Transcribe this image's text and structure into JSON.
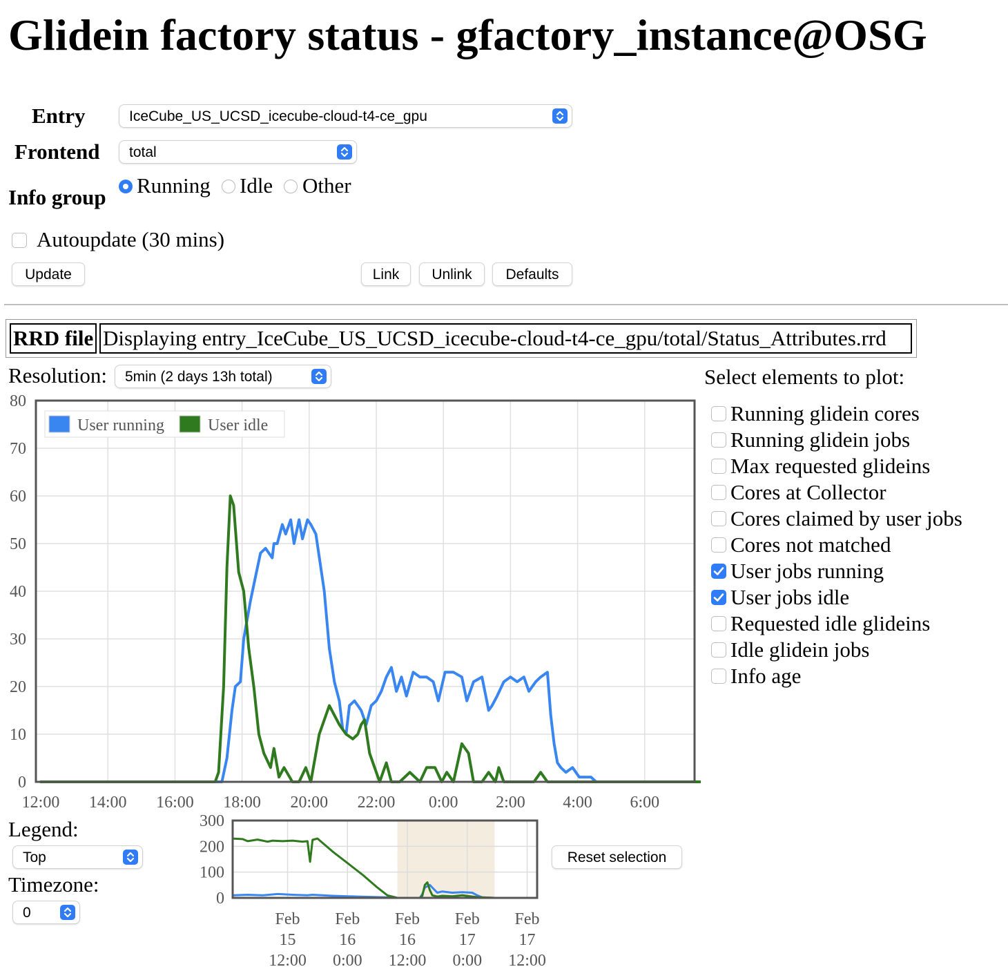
{
  "page": {
    "title": "Glidein factory status - gfactory_instance@OSG"
  },
  "controls": {
    "entry_label": "Entry",
    "entry_value": "IceCube_US_UCSD_icecube-cloud-t4-ce_gpu",
    "frontend_label": "Frontend",
    "frontend_value": "total",
    "info_group_label": "Info group",
    "info_group_options": [
      "Running",
      "Idle",
      "Other"
    ],
    "info_group_selected": "Running",
    "autoupdate_label": "Autoupdate (30 mins)",
    "autoupdate_checked": false,
    "buttons": {
      "update": "Update",
      "link": "Link",
      "unlink": "Unlink",
      "defaults": "Defaults"
    }
  },
  "rrd": {
    "label": "RRD file",
    "text": "Displaying entry_IceCube_US_UCSD_icecube-cloud-t4-ce_gpu/total/Status_Attributes.rrd"
  },
  "resolution": {
    "label": "Resolution:",
    "value": "5min (2 days 13h total)"
  },
  "plot_elements": {
    "title": "Select elements to plot:",
    "items": [
      {
        "label": "Running glidein cores",
        "checked": false
      },
      {
        "label": "Running glidein jobs",
        "checked": false
      },
      {
        "label": "Max requested glideins",
        "checked": false
      },
      {
        "label": "Cores at Collector",
        "checked": false
      },
      {
        "label": "Cores claimed by user jobs",
        "checked": false
      },
      {
        "label": "Cores not matched",
        "checked": false
      },
      {
        "label": "User jobs running",
        "checked": true
      },
      {
        "label": "User jobs idle",
        "checked": true
      },
      {
        "label": "Requested idle glideins",
        "checked": false
      },
      {
        "label": "Idle glidein jobs",
        "checked": false
      },
      {
        "label": "Info age",
        "checked": false
      }
    ]
  },
  "options": {
    "legend_label": "Legend:",
    "legend_value": "Top",
    "timezone_label": "Timezone:",
    "timezone_value": "0",
    "reset_button": "Reset selection"
  },
  "colors": {
    "running": "#3a86f0",
    "idle": "#2f7a1f",
    "accent": "#2f7cf6",
    "selection": "#f5ece0"
  },
  "chart_data": [
    {
      "type": "line",
      "title": "",
      "xlabel": "",
      "ylabel": "",
      "x_ticks": [
        "12:00",
        "14:00",
        "16:00",
        "18:00",
        "20:00",
        "22:00",
        "0:00",
        "2:00",
        "4:00",
        "6:00"
      ],
      "xlim": [
        0,
        19.7
      ],
      "ylim": [
        0,
        80
      ],
      "y_ticks": [
        0,
        10,
        20,
        30,
        40,
        50,
        60,
        70,
        80
      ],
      "legend": {
        "position": "top-left",
        "entries": [
          "User running",
          "User idle"
        ]
      },
      "series": [
        {
          "name": "User running",
          "color": "#3a86f0",
          "x": [
            0,
            5.2,
            5.4,
            5.55,
            5.7,
            5.8,
            5.95,
            6.05,
            6.25,
            6.4,
            6.55,
            6.7,
            6.9,
            6.95,
            7.05,
            7.2,
            7.3,
            7.45,
            7.55,
            7.7,
            7.8,
            7.95,
            8.05,
            8.2,
            8.45,
            8.6,
            8.75,
            8.9,
            9.0,
            9.1,
            9.2,
            9.35,
            9.45,
            9.55,
            9.7,
            9.85,
            10.0,
            10.15,
            10.3,
            10.45,
            10.6,
            10.75,
            10.9,
            11.1,
            11.3,
            11.5,
            11.7,
            11.85,
            12.05,
            12.3,
            12.55,
            12.7,
            12.9,
            13.15,
            13.35,
            13.45,
            13.6,
            13.8,
            14.0,
            14.2,
            14.4,
            14.55,
            14.75,
            14.9,
            15.1,
            15.2,
            15.3,
            15.4,
            15.5,
            15.65,
            15.85,
            16.05,
            16.25,
            16.4,
            16.55,
            16.7,
            16.8,
            16.95,
            17.2,
            17.4,
            17.55,
            17.7,
            17.9,
            18.1,
            19.7
          ],
          "y": [
            0,
            0,
            0,
            5,
            15,
            20,
            21,
            30,
            38,
            43,
            48,
            49,
            47,
            50,
            50,
            54,
            52,
            55,
            50,
            55,
            51,
            55,
            54,
            52,
            40,
            28,
            21,
            17,
            11,
            10,
            16,
            17,
            16,
            15,
            12,
            16,
            17,
            19,
            22,
            24,
            19,
            22,
            18,
            23,
            22,
            22,
            21,
            17,
            23,
            23,
            22,
            17,
            21,
            22,
            15,
            16,
            18,
            21,
            22,
            21,
            22,
            19,
            21,
            22,
            23,
            14,
            8,
            4,
            3,
            2,
            3,
            1,
            1,
            1,
            0,
            0,
            0,
            0,
            0,
            0,
            0,
            0,
            0,
            0,
            0
          ]
        },
        {
          "name": "User idle",
          "color": "#2f7a1f",
          "x": [
            0,
            5.2,
            5.3,
            5.45,
            5.55,
            5.65,
            5.75,
            5.9,
            6.05,
            6.2,
            6.35,
            6.5,
            6.65,
            6.85,
            6.95,
            7.1,
            7.25,
            7.5,
            7.7,
            7.9,
            8.05,
            8.3,
            8.6,
            8.9,
            9.1,
            9.3,
            9.45,
            9.55,
            9.65,
            9.8,
            9.95,
            10.1,
            10.3,
            10.45,
            10.7,
            11.0,
            11.3,
            11.5,
            11.75,
            11.95,
            12.1,
            12.3,
            12.55,
            12.75,
            12.9,
            13.15,
            13.35,
            13.55,
            13.65,
            13.8,
            14.05,
            14.4,
            14.7,
            14.9,
            15.1,
            15.3,
            15.6,
            16.0,
            19.7
          ],
          "y": [
            0,
            0,
            2,
            20,
            45,
            60,
            58,
            44,
            40,
            28,
            20,
            10,
            6,
            3,
            7,
            1,
            3,
            0,
            0,
            3,
            0,
            10,
            16,
            12,
            10,
            9,
            10,
            12,
            13,
            6,
            3,
            0,
            4,
            0,
            0,
            2,
            0,
            3,
            3,
            0,
            2,
            0,
            8,
            6,
            0,
            0,
            2,
            0,
            3,
            0,
            0,
            0,
            0,
            2,
            0,
            0,
            0,
            0,
            0
          ]
        }
      ]
    },
    {
      "type": "line",
      "title": "",
      "role": "overview",
      "x_ticks": [
        "Feb 15 12:00",
        "Feb 16 0:00",
        "Feb 16 12:00",
        "Feb 17 0:00",
        "Feb 17 12:00"
      ],
      "xlim": [
        0,
        61
      ],
      "ylim": [
        0,
        300
      ],
      "y_ticks": [
        0,
        100,
        200,
        300
      ],
      "selection_range": [
        33,
        52.5
      ],
      "series": [
        {
          "name": "User running",
          "color": "#3a86f0",
          "x": [
            0,
            3,
            6,
            9,
            12,
            15,
            16,
            20,
            25,
            31,
            33,
            37.5,
            38,
            38.5,
            39,
            39.5,
            40,
            41,
            42,
            44,
            46,
            48,
            49,
            50,
            52.5,
            61
          ],
          "y": [
            10,
            12,
            10,
            15,
            12,
            10,
            12,
            8,
            5,
            2,
            0,
            0,
            15,
            40,
            45,
            50,
            40,
            20,
            25,
            20,
            22,
            20,
            10,
            2,
            0,
            0
          ]
        },
        {
          "name": "User idle",
          "color": "#2f7a1f",
          "x": [
            0,
            2,
            3,
            5,
            7,
            8,
            10,
            12,
            14,
            15,
            15.5,
            16,
            17,
            20,
            23,
            26,
            29,
            31,
            33,
            37.5,
            38,
            38.5,
            39,
            39.5,
            40,
            41,
            42,
            44,
            46,
            48,
            49,
            50,
            52.5,
            61
          ],
          "y": [
            230,
            228,
            220,
            226,
            218,
            222,
            220,
            222,
            218,
            220,
            140,
            225,
            230,
            180,
            135,
            90,
            40,
            10,
            0,
            0,
            8,
            50,
            60,
            30,
            10,
            5,
            8,
            6,
            10,
            5,
            3,
            2,
            0,
            0
          ]
        }
      ]
    }
  ]
}
